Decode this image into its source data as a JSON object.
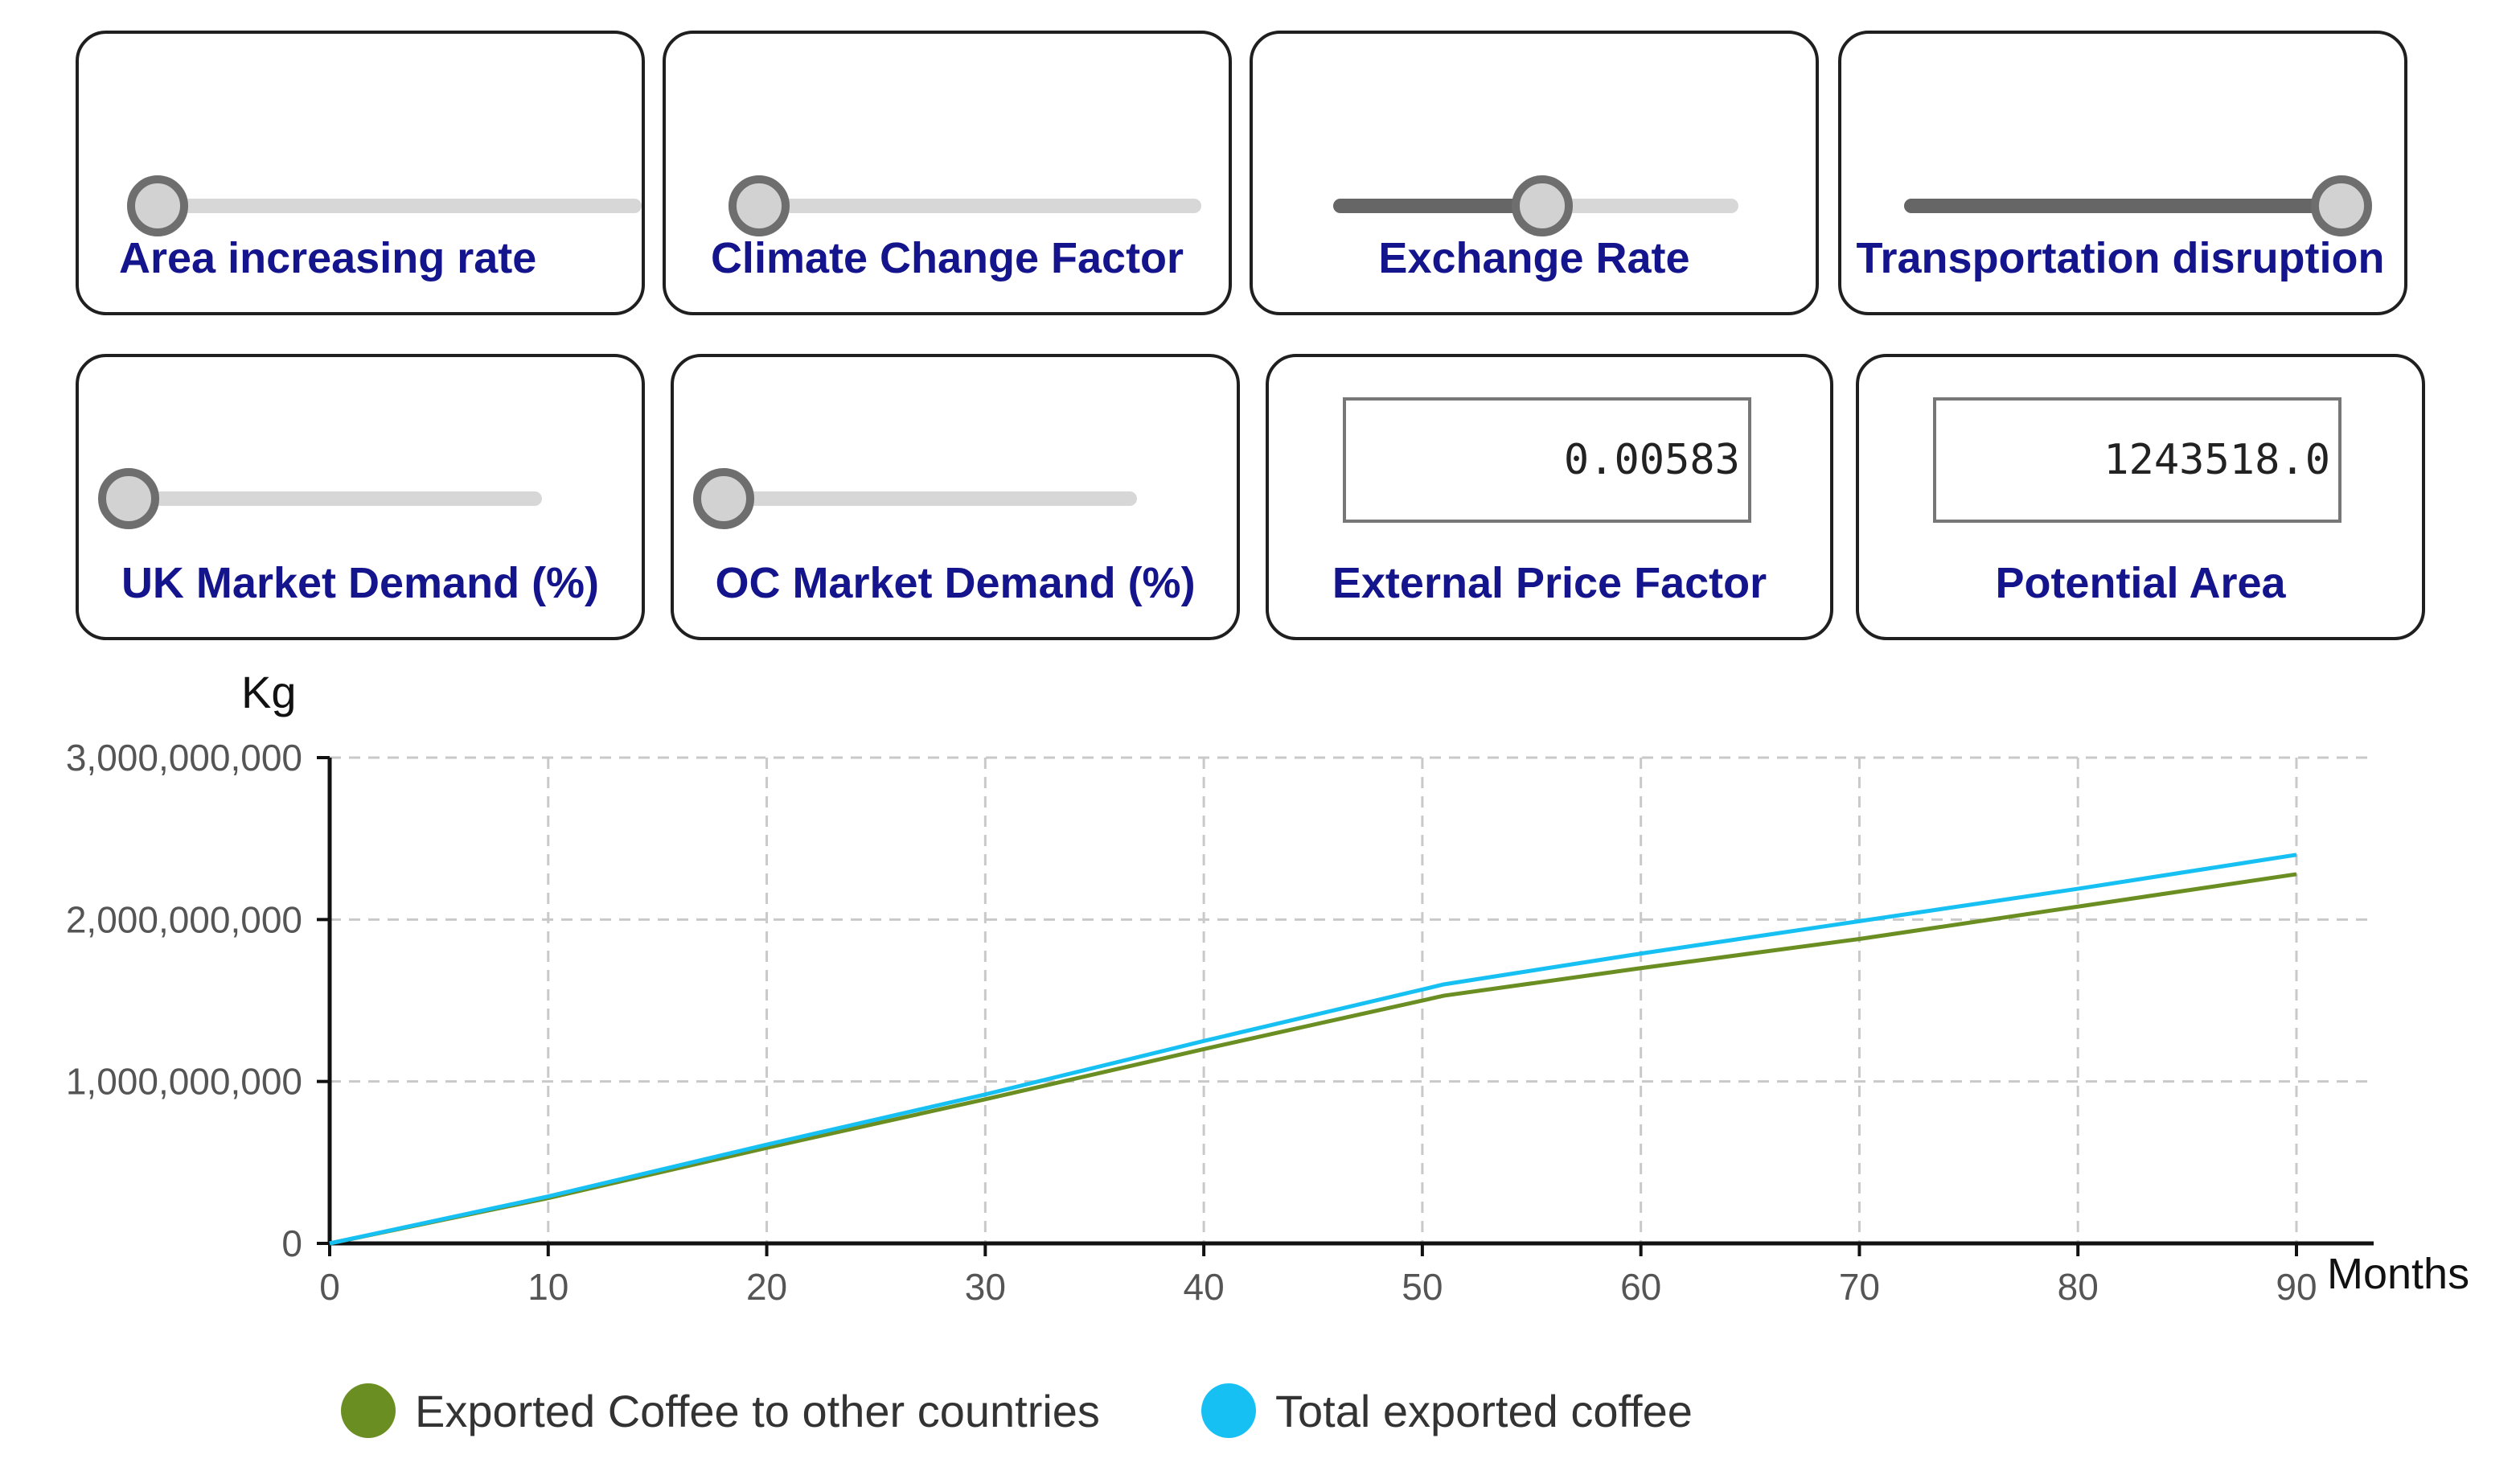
{
  "controls": {
    "area_rate": {
      "label": "Area increasing rate",
      "value_fraction": 0.0
    },
    "climate": {
      "label": "Climate Change Factor",
      "value_fraction": 0.0
    },
    "exchange": {
      "label": "Exchange Rate",
      "value_fraction": 0.5
    },
    "transport": {
      "label": "Transportation disruption",
      "value_fraction": 1.0
    },
    "uk_demand": {
      "label": "UK Market Demand (%)",
      "value_fraction": 0.0
    },
    "oc_demand": {
      "label": "OC Market Demand (%)",
      "value_fraction": 0.0
    },
    "price_factor": {
      "label": "External Price Factor",
      "value": "0.00583"
    },
    "potential_area": {
      "label": "Potential Area",
      "value": "1243518.0"
    }
  },
  "colors": {
    "series_other": "#6b8e23",
    "series_total": "#17c0f2",
    "label_blue": "#14148c"
  },
  "chart_data": {
    "type": "line",
    "ylabel": "Kg",
    "xlabel": "Months",
    "xlim": [
      0,
      90
    ],
    "ylim": [
      0,
      3000000000
    ],
    "x_ticks": [
      "0",
      "10",
      "20",
      "30",
      "40",
      "50",
      "60",
      "70",
      "80",
      "90"
    ],
    "x_tick_values": [
      0,
      10,
      20,
      30,
      40,
      50,
      60,
      70,
      80,
      90
    ],
    "y_ticks": [
      "0",
      "1,000,000,000",
      "2,000,000,000",
      "3,000,000,000"
    ],
    "y_tick_values": [
      0,
      1000000000,
      2000000000,
      3000000000
    ],
    "grid": true,
    "legend_position": "bottom",
    "x": [
      0,
      10,
      20,
      30,
      40,
      51,
      60,
      70,
      80,
      90
    ],
    "series": [
      {
        "name": "Exported Coffee to other countries",
        "color": "#6b8e23",
        "values": [
          0,
          280000000,
          590000000,
          890000000,
          1200000000,
          1530000000,
          1700000000,
          1880000000,
          2080000000,
          2280000000
        ]
      },
      {
        "name": "Total exported coffee",
        "color": "#17c0f2",
        "values": [
          0,
          290000000,
          610000000,
          920000000,
          1250000000,
          1600000000,
          1790000000,
          1990000000,
          2190000000,
          2400000000
        ]
      }
    ]
  }
}
